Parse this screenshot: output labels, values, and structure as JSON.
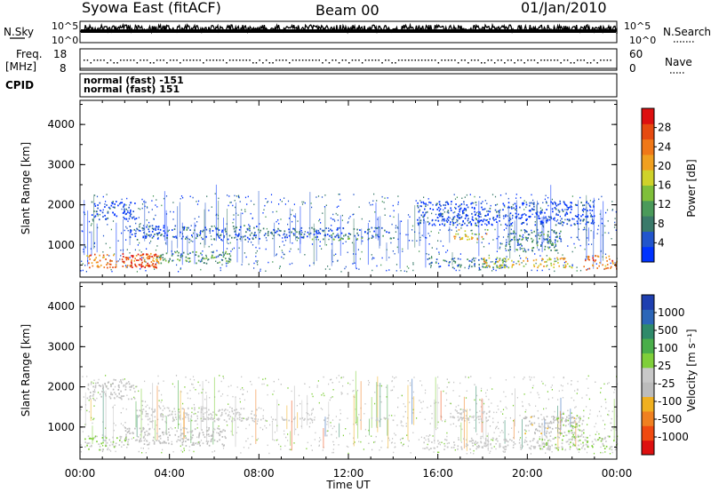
{
  "header": {
    "station": "Syowa East (fitACF)",
    "beam": "Beam 00",
    "date": "01/Jan/2010"
  },
  "top_panels": {
    "nsky_label": "N.Sky",
    "nsky_ticks": [
      "10^5",
      "10^0"
    ],
    "nsearch_label": "N.Search",
    "nsearch_ticks": [
      "10^5",
      "10^0"
    ],
    "freq_label_1": "Freq.",
    "freq_label_2": "[MHz]",
    "freq_ticks": [
      "18",
      "8"
    ],
    "nave_label": "Nave",
    "nave_ticks": [
      "60",
      "0"
    ],
    "cpid_label": "CPID",
    "cpid_lines": [
      "normal (fast) -151",
      "normal (fast) 151"
    ]
  },
  "colorbars": {
    "power": {
      "label": "Power [dB]",
      "ticks": [
        "28",
        "24",
        "20",
        "16",
        "12",
        "8",
        "4"
      ],
      "colors": [
        "#0033ff",
        "#2255cc",
        "#3a7a6a",
        "#4a9a5a",
        "#7fbf3a",
        "#cfd22a",
        "#f0a020",
        "#f07818",
        "#e64a10",
        "#dd1010"
      ]
    },
    "velocity": {
      "label": "Velocity [m s⁻¹]",
      "ticks": [
        "1000",
        "500",
        "100",
        "25",
        "-25",
        "-100",
        "-500",
        "-1000"
      ],
      "colors": [
        "#1e3fb0",
        "#2c66b8",
        "#2f8a6a",
        "#4aae4a",
        "#7fcf3a",
        "#c8c8c8",
        "#bcbcbc",
        "#f0b020",
        "#f08020",
        "#f04a10",
        "#dd1010"
      ]
    }
  },
  "chart_data": [
    {
      "type": "heatmap",
      "name": "Power",
      "ylabel": "Slant Range [km]",
      "ylim": [
        200,
        4600
      ],
      "yticks": [
        "4000",
        "3000",
        "2000",
        "1000"
      ],
      "xlim": [
        "00:00",
        "24:00"
      ],
      "colorbar": "Power [dB]",
      "scale": [
        4,
        28
      ],
      "regions": [
        {
          "t0": 0.2,
          "t1": 3.6,
          "r0": 450,
          "r1": 800,
          "value": 22
        },
        {
          "t0": 1.8,
          "t1": 3.4,
          "r0": 430,
          "r1": 800,
          "value": 26
        },
        {
          "t0": 3.4,
          "t1": 6.8,
          "r0": 550,
          "r1": 850,
          "value": 12
        },
        {
          "t0": 2.2,
          "t1": 8.0,
          "r0": 1150,
          "r1": 1500,
          "value": 8
        },
        {
          "t0": 8.0,
          "t1": 13.8,
          "r0": 1200,
          "r1": 1450,
          "value": 8
        },
        {
          "t0": 0.5,
          "t1": 2.5,
          "r0": 1650,
          "r1": 2100,
          "value": 6
        },
        {
          "t0": 9.5,
          "t1": 14.2,
          "r0": 1150,
          "r1": 1200,
          "value": 12
        },
        {
          "t0": 15.5,
          "t1": 19.0,
          "r0": 450,
          "r1": 700,
          "value": 10
        },
        {
          "t0": 18.0,
          "t1": 22.0,
          "r0": 450,
          "r1": 700,
          "value": 18
        },
        {
          "t0": 22.5,
          "t1": 24.0,
          "r0": 400,
          "r1": 750,
          "value": 22
        },
        {
          "t0": 16.7,
          "t1": 18.2,
          "r0": 1150,
          "r1": 1400,
          "value": 18
        },
        {
          "t0": 19.0,
          "t1": 21.5,
          "r0": 850,
          "r1": 1400,
          "value": 10
        },
        {
          "t0": 15.0,
          "t1": 23.0,
          "r0": 1500,
          "r1": 2100,
          "value": 6
        }
      ]
    },
    {
      "type": "heatmap",
      "name": "Velocity",
      "ylabel": "Slant Range [km]",
      "xlabel": "Time UT",
      "ylim": [
        200,
        4600
      ],
      "yticks": [
        "4000",
        "3000",
        "2000",
        "1000"
      ],
      "xlim": [
        "00:00",
        "24:00"
      ],
      "xticks": [
        "00:00",
        "04:00",
        "08:00",
        "12:00",
        "16:00",
        "20:00",
        "00:00"
      ],
      "colorbar": "Velocity [m s⁻¹]",
      "scale": [
        -1000,
        1000
      ],
      "regions": [
        {
          "t0": 0.2,
          "t1": 2.2,
          "r0": 450,
          "r1": 800,
          "value": 80
        },
        {
          "t0": 2.0,
          "t1": 6.5,
          "r0": 550,
          "r1": 1000,
          "value": -120
        },
        {
          "t0": 2.5,
          "t1": 8.0,
          "r0": 1150,
          "r1": 1500,
          "value": 0
        },
        {
          "t0": 8.0,
          "t1": 14.0,
          "r0": 1180,
          "r1": 1250,
          "value": 0
        },
        {
          "t0": 0.3,
          "t1": 2.5,
          "r0": 1700,
          "r1": 2200,
          "value": -80
        },
        {
          "t0": 15.3,
          "t1": 21.0,
          "r0": 450,
          "r1": 750,
          "value": 0
        },
        {
          "t0": 20.5,
          "t1": 24.0,
          "r0": 450,
          "r1": 800,
          "value": 80
        },
        {
          "t0": 16.5,
          "t1": 18.3,
          "r0": 1150,
          "r1": 1450,
          "value": 0
        },
        {
          "t0": 19.8,
          "t1": 22.2,
          "r0": 850,
          "r1": 1300,
          "value": -200
        },
        {
          "t0": 21.3,
          "t1": 22.5,
          "r0": 750,
          "r1": 1350,
          "value": 80
        }
      ]
    }
  ]
}
